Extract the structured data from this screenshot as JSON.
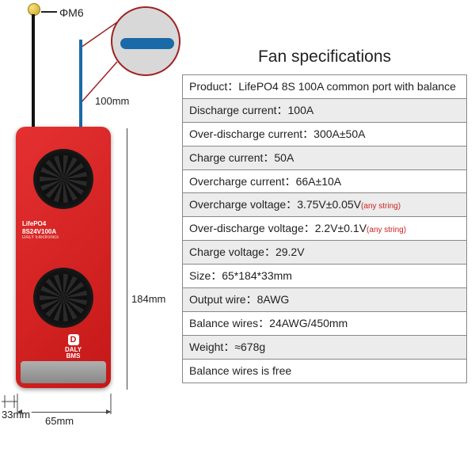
{
  "product_image": {
    "terminal_label": "ΦM6",
    "wire_label_100mm": "100mm",
    "dim_height": "184mm",
    "dim_width": "65mm",
    "dim_depth": "33mm",
    "bms_text": {
      "line1": "LifePO4",
      "line2": "8S24V100A",
      "brand": "DALY Electronics",
      "logo1": "DALY",
      "logo2": "BMS"
    },
    "colors": {
      "body": "#c51818",
      "wire_blue": "#1a6aa8",
      "wire_black": "#111111",
      "terminal": "#caa32a",
      "any_string": "#d02020"
    }
  },
  "spec_title": "Fan specifications",
  "specs": [
    {
      "label": "Product：",
      "value": "LifePO4 8S 100A common port with balance",
      "any": false
    },
    {
      "label": "Discharge current：",
      "value": "100A",
      "any": false
    },
    {
      "label": "Over-discharge current：",
      "value": "300A±50A",
      "any": false
    },
    {
      "label": "Charge current：",
      "value": "50A",
      "any": false
    },
    {
      "label": "Overcharge current：",
      "value": "66A±10A",
      "any": false
    },
    {
      "label": "Overcharge voltage：",
      "value": "3.75V±0.05V",
      "any": true
    },
    {
      "label": "Over-discharge voltage：",
      "value": "2.2V±0.1V",
      "any": true
    },
    {
      "label": "Charge voltage：",
      "value": "29.2V",
      "any": false
    },
    {
      "label": "Size：",
      "value": "65*184*33mm",
      "any": false
    },
    {
      "label": "Output wire：",
      "value": "8AWG",
      "any": false
    },
    {
      "label": "Balance wires：",
      "value": "24AWG/450mm",
      "any": false
    },
    {
      "label": "Weight：",
      "value": "≈678g",
      "any": false
    }
  ],
  "spec_note": "Balance wires is free",
  "any_string_text": "(any string)"
}
